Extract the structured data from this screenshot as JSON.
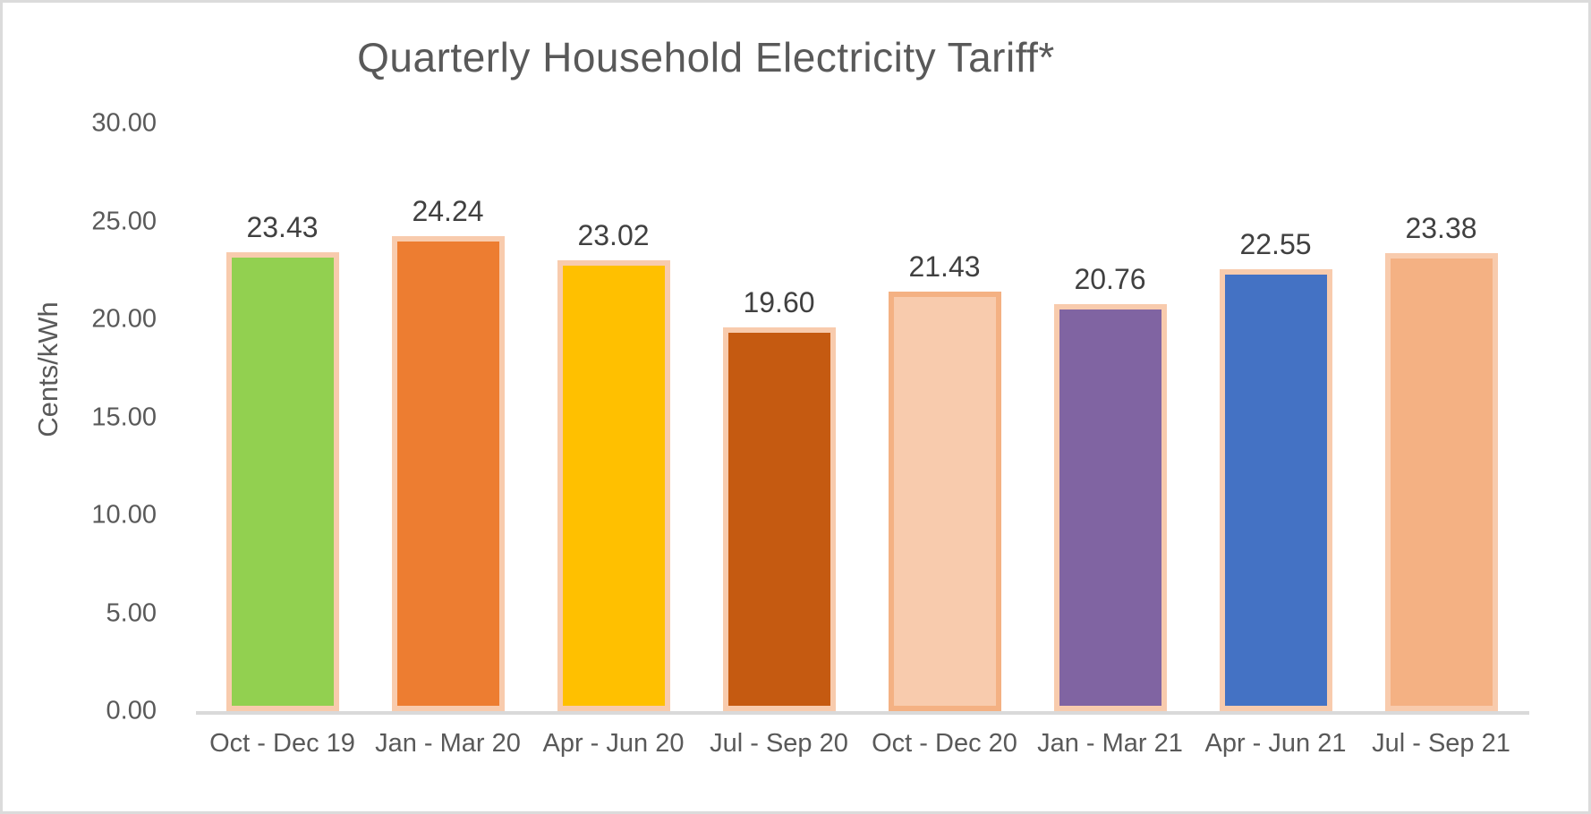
{
  "chart_data": {
    "type": "bar",
    "title": "Quarterly Household Electricity Tariff*",
    "ylabel": "Cents/kWh",
    "xlabel": "",
    "ylim": [
      0,
      30
    ],
    "ytick_step": 5,
    "yticks": [
      "30.00",
      "25.00",
      "20.00",
      "15.00",
      "10.00",
      "5.00",
      "0.00"
    ],
    "grid": false,
    "legend": false,
    "categories": [
      "Oct - Dec 19",
      "Jan - Mar 20",
      "Apr - Jun 20",
      "Jul - Sep 20",
      "Oct - Dec 20",
      "Jan - Mar 21",
      "Apr - Jun 21",
      "Jul - Sep 21"
    ],
    "values": [
      23.43,
      24.24,
      23.02,
      19.6,
      21.43,
      20.76,
      22.55,
      23.38
    ],
    "data_labels": [
      "23.43",
      "24.24",
      "23.02",
      "19.60",
      "21.43",
      "20.76",
      "22.55",
      "23.38"
    ],
    "bar_colors": [
      "#92D050",
      "#ED7D31",
      "#FFC000",
      "#C55A11",
      "#F8CBAD",
      "#8064A2",
      "#4472C4",
      "#F4B183"
    ],
    "bar_border_colors": [
      "#F8CBAD",
      "#F8CBAD",
      "#F8CBAD",
      "#F8CBAD",
      "#F4B183",
      "#F8CBAD",
      "#F8CBAD",
      "#F8CBAD"
    ]
  },
  "colors": {
    "title_text": "#595959",
    "axis_text": "#595959",
    "data_label_text": "#404040",
    "axis_line": "#D9D9D9",
    "frame_border": "#DBDBDB",
    "background": "#FFFFFF"
  }
}
